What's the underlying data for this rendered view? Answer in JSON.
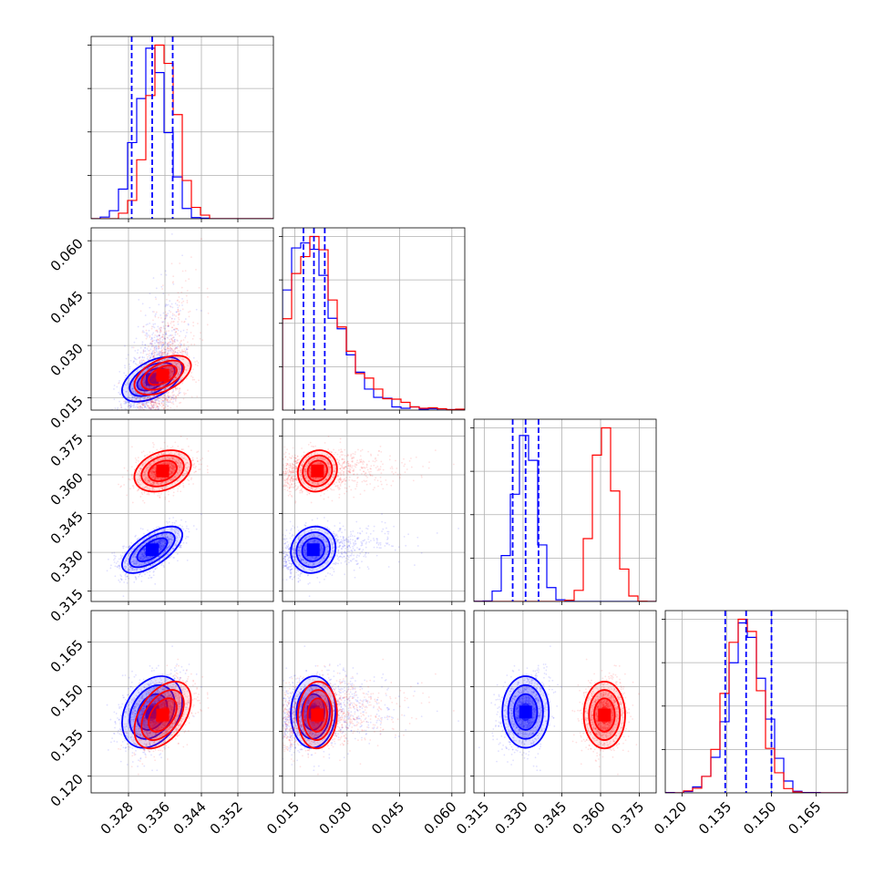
{
  "colors": {
    "series_a": "#0000ff",
    "series_b": "#ff0000",
    "grid": "#b0b0b0"
  },
  "chart_data": {
    "type": "scatter",
    "subtype": "corner-plot",
    "title": "",
    "grid": true,
    "legend": "none",
    "parameters": [
      {
        "ticks": [
          0.328,
          0.336,
          0.344,
          0.352
        ],
        "tick_labels": [
          "0.328",
          "0.336",
          "0.344",
          "0.352"
        ],
        "range": [
          0.3198,
          0.3598
        ]
      },
      {
        "ticks": [
          0.015,
          0.03,
          0.045,
          0.06
        ],
        "tick_labels": [
          "0.015",
          "0.030",
          "0.045",
          "0.060"
        ],
        "range": [
          0.0115,
          0.0637
        ]
      },
      {
        "ticks": [
          0.315,
          0.33,
          0.345,
          0.36,
          0.375
        ],
        "tick_labels": [
          "0.315",
          "0.330",
          "0.345",
          "0.360",
          "0.375"
        ],
        "range": [
          0.311,
          0.3815
        ]
      },
      {
        "ticks": [
          0.12,
          0.135,
          0.15,
          0.165
        ],
        "tick_labels": [
          "0.120",
          "0.135",
          "0.150",
          "0.165"
        ],
        "range": [
          0.1144,
          0.1755
        ]
      }
    ],
    "series": [
      {
        "color": "#0000ff",
        "mean": [
          0.3332,
          0.0203,
          0.331,
          0.1415
        ],
        "sd": [
          0.0033,
          0.0032,
          0.0045,
          0.006
        ],
        "corr": [
          [
            1,
            0.5,
            0.65,
            0.3
          ],
          [
            0.5,
            1,
            0.1,
            0.05
          ],
          [
            0.65,
            0.1,
            1,
            0.0
          ],
          [
            0.3,
            0.05,
            0.0,
            1
          ]
        ]
      },
      {
        "color": "#ff0000",
        "mean": [
          0.3355,
          0.0215,
          0.3615,
          0.1405
        ],
        "sd": [
          0.0031,
          0.0028,
          0.004,
          0.0056
        ],
        "corr": [
          [
            1,
            0.5,
            0.3,
            0.45
          ],
          [
            0.5,
            1,
            0.1,
            0.05
          ],
          [
            0.3,
            0.1,
            1,
            0.0
          ],
          [
            0.45,
            0.05,
            0.0,
            1
          ]
        ]
      }
    ],
    "quantile_lines": [
      [
        0.3287,
        0.3332,
        0.3377
      ],
      [
        0.0175,
        0.0205,
        0.0236
      ],
      [
        0.326,
        0.331,
        0.336
      ],
      [
        0.1345,
        0.1415,
        0.15
      ]
    ],
    "quantile_line_color": "#0000ff"
  }
}
